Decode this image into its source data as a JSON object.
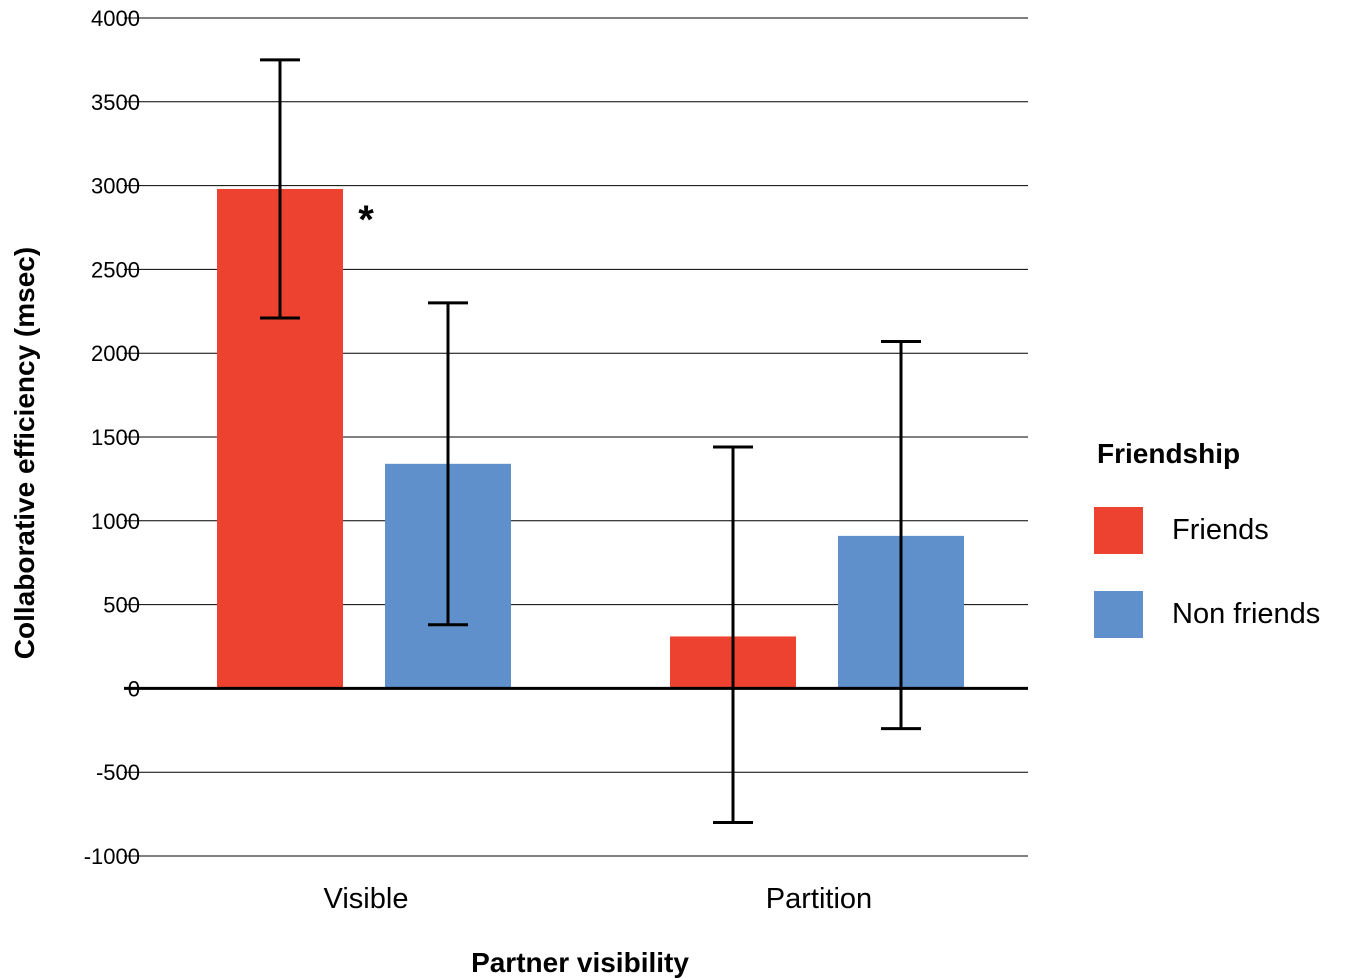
{
  "chart_data": {
    "type": "bar",
    "title": "",
    "xlabel": "Partner visibility",
    "ylabel": "Collaborative efficiency (msec)",
    "categories": [
      "Visible",
      "Partition"
    ],
    "ylim": [
      -1000,
      4000
    ],
    "yticks": [
      -1000,
      -500,
      0,
      500,
      1000,
      1500,
      2000,
      2500,
      3000,
      3500,
      4000
    ],
    "grid": true,
    "legend": {
      "title": "Friendship",
      "position": "right"
    },
    "series": [
      {
        "name": "Friends",
        "color": "#ee4230",
        "values": [
          2980,
          310
        ],
        "error_low": [
          2210,
          -800
        ],
        "error_high": [
          3750,
          1440
        ]
      },
      {
        "name": "Non friends",
        "color": "#5f90cb",
        "values": [
          1340,
          910
        ],
        "error_low": [
          380,
          -240
        ],
        "error_high": [
          2300,
          2070
        ]
      }
    ],
    "annotations": [
      {
        "text": "*",
        "category": "Visible",
        "series": "Friends"
      }
    ]
  }
}
